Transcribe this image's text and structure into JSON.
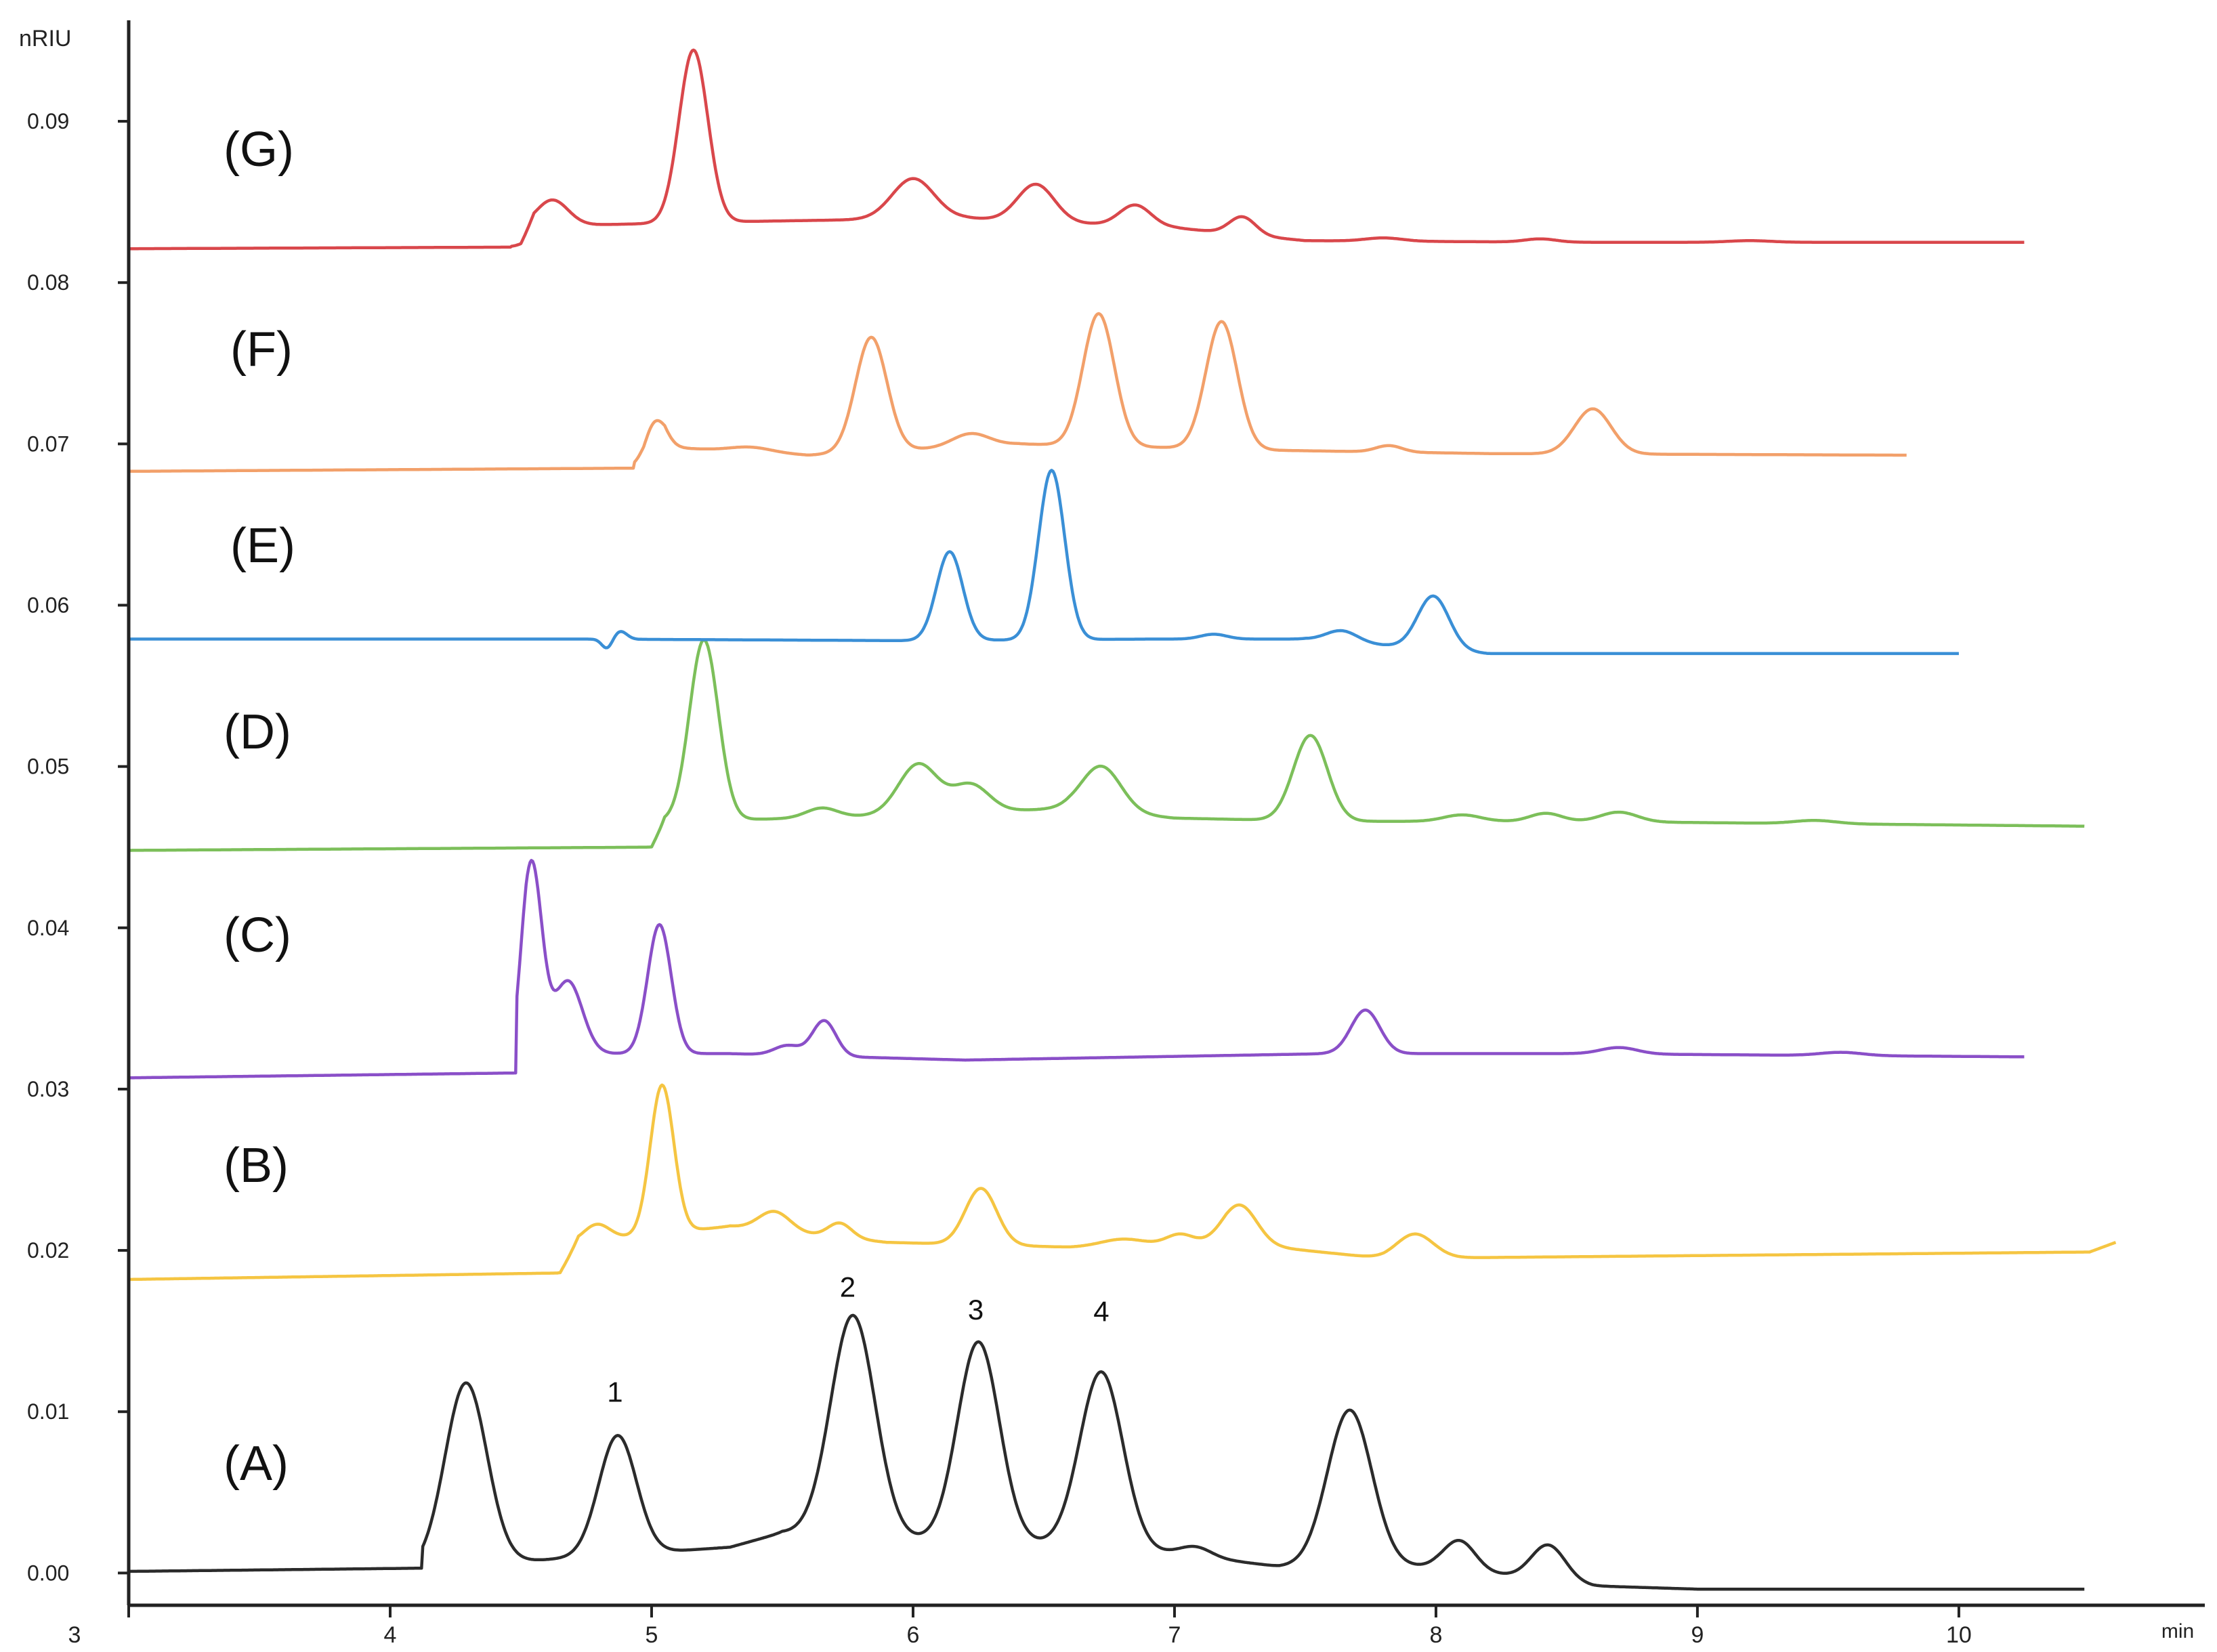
{
  "chart_data": {
    "type": "line",
    "title": "",
    "xlabel": "min",
    "ylabel": "nRIU",
    "x_ticks": [
      "3",
      "4",
      "5",
      "6",
      "7",
      "8",
      "9",
      "10"
    ],
    "y_ticks": [
      "0.00",
      "0.01",
      "0.02",
      "0.03",
      "0.04",
      "0.05",
      "0.06",
      "0.07",
      "0.08",
      "0.09"
    ],
    "xlim": [
      3,
      10.85
    ],
    "ylim": [
      -0.002,
      0.095
    ],
    "grid": false,
    "legend": "none",
    "peak_labels": [
      {
        "text": "1",
        "x": 4.86,
        "y": 0.0102
      },
      {
        "text": "2",
        "x": 5.75,
        "y": 0.0167
      },
      {
        "text": "3",
        "x": 6.24,
        "y": 0.0153
      },
      {
        "text": "4",
        "x": 6.72,
        "y": 0.0152
      }
    ],
    "series": [
      {
        "name": "(A)",
        "color": "#2b2b2b",
        "baseline": [
          [
            3.0,
            0.0001
          ],
          [
            4.12,
            0.0003
          ],
          [
            5.3,
            0.0016
          ],
          [
            5.5,
            0.0025
          ],
          [
            6.1,
            0.002
          ],
          [
            6.55,
            0.0018
          ],
          [
            7.0,
            0.0012
          ],
          [
            7.4,
            0.0004
          ],
          [
            8.0,
            0.0004
          ],
          [
            8.6,
            -0.0008
          ],
          [
            9.0,
            -0.001
          ],
          [
            10.5,
            -0.001
          ]
        ],
        "peaks": [
          {
            "center": 4.29,
            "height": 0.0113,
            "width": 0.08
          },
          {
            "center": 4.87,
            "height": 0.0074,
            "width": 0.072
          },
          {
            "center": 5.77,
            "height": 0.0137,
            "width": 0.085
          },
          {
            "center": 6.25,
            "height": 0.0124,
            "width": 0.08
          },
          {
            "center": 6.72,
            "height": 0.0109,
            "width": 0.082
          },
          {
            "center": 7.08,
            "height": 0.0006,
            "width": 0.06
          },
          {
            "center": 7.67,
            "height": 0.0097,
            "width": 0.085
          },
          {
            "center": 8.09,
            "height": 0.0018,
            "width": 0.06
          },
          {
            "center": 8.43,
            "height": 0.0022,
            "width": 0.065
          }
        ],
        "x_start": 3.0,
        "x_end": 10.48,
        "onset": 4.14
      },
      {
        "name": "(B)",
        "color": "#f5c542",
        "baseline": [
          [
            3.0,
            0.0182
          ],
          [
            4.65,
            0.0186
          ],
          [
            4.72,
            0.0205
          ],
          [
            5.3,
            0.0215
          ],
          [
            5.9,
            0.0205
          ],
          [
            6.6,
            0.0202
          ],
          [
            7.2,
            0.0205
          ],
          [
            7.8,
            0.0195
          ],
          [
            10.5,
            0.0199
          ],
          [
            10.6,
            0.0205
          ]
        ],
        "peaks": [
          {
            "center": 4.79,
            "height": 0.001,
            "width": 0.05
          },
          {
            "center": 5.04,
            "height": 0.0092,
            "width": 0.045
          },
          {
            "center": 5.47,
            "height": 0.0012,
            "width": 0.06
          },
          {
            "center": 5.72,
            "height": 0.0009,
            "width": 0.045
          },
          {
            "center": 6.26,
            "height": 0.0035,
            "width": 0.06
          },
          {
            "center": 6.8,
            "height": 0.0004,
            "width": 0.08
          },
          {
            "center": 7.02,
            "height": 0.0006,
            "width": 0.05
          },
          {
            "center": 7.25,
            "height": 0.0024,
            "width": 0.065
          },
          {
            "center": 7.92,
            "height": 0.0015,
            "width": 0.07
          }
        ],
        "x_start": 3.0,
        "x_end": 10.6,
        "onset": 4.66
      },
      {
        "name": "(C)",
        "color": "#8a4fc8",
        "baseline": [
          [
            3.0,
            0.0307
          ],
          [
            4.48,
            0.031
          ],
          [
            4.52,
            0.0322
          ],
          [
            5.3,
            0.0322
          ],
          [
            6.2,
            0.0318
          ],
          [
            7.6,
            0.0322
          ],
          [
            8.5,
            0.0322
          ],
          [
            10.25,
            0.032
          ]
        ],
        "peaks": [
          {
            "center": 4.54,
            "height": 0.0118,
            "width": 0.04
          },
          {
            "center": 4.68,
            "height": 0.0045,
            "width": 0.055
          },
          {
            "center": 5.03,
            "height": 0.008,
            "width": 0.045
          },
          {
            "center": 5.52,
            "height": 0.0006,
            "width": 0.05
          },
          {
            "center": 5.66,
            "height": 0.0022,
            "width": 0.045
          },
          {
            "center": 7.73,
            "height": 0.0027,
            "width": 0.055
          },
          {
            "center": 8.7,
            "height": 0.0004,
            "width": 0.07
          },
          {
            "center": 9.55,
            "height": 0.0002,
            "width": 0.08
          }
        ],
        "x_start": 3.0,
        "x_end": 10.25,
        "onset": 4.5
      },
      {
        "name": "(D)",
        "color": "#7cbf5a",
        "baseline": [
          [
            3.0,
            0.0448
          ],
          [
            5.0,
            0.045
          ],
          [
            5.05,
            0.0466
          ],
          [
            5.6,
            0.0468
          ],
          [
            6.6,
            0.0474
          ],
          [
            7.0,
            0.0468
          ],
          [
            7.6,
            0.0466
          ],
          [
            8.5,
            0.0466
          ],
          [
            10.48,
            0.0463
          ]
        ],
        "peaks": [
          {
            "center": 5.2,
            "height": 0.0112,
            "width": 0.055
          },
          {
            "center": 5.65,
            "height": 0.0006,
            "width": 0.06
          },
          {
            "center": 6.02,
            "height": 0.0031,
            "width": 0.075
          },
          {
            "center": 6.22,
            "height": 0.0017,
            "width": 0.07
          },
          {
            "center": 6.72,
            "height": 0.0028,
            "width": 0.075
          },
          {
            "center": 7.52,
            "height": 0.0053,
            "width": 0.065
          },
          {
            "center": 8.1,
            "height": 0.0004,
            "width": 0.07
          },
          {
            "center": 8.42,
            "height": 0.0005,
            "width": 0.06
          },
          {
            "center": 8.7,
            "height": 0.0006,
            "width": 0.07
          },
          {
            "center": 9.45,
            "height": 0.0002,
            "width": 0.08
          }
        ],
        "x_start": 3.0,
        "x_end": 10.48,
        "onset": 5.0
      },
      {
        "name": "(E)",
        "color": "#3a8fd6",
        "baseline": [
          [
            3.0,
            0.0579
          ],
          [
            4.75,
            0.0579
          ],
          [
            6.0,
            0.0578
          ],
          [
            6.9,
            0.0579
          ],
          [
            7.5,
            0.0579
          ],
          [
            8.2,
            0.057
          ],
          [
            9.0,
            0.057
          ],
          [
            10.0,
            0.057
          ]
        ],
        "peaks": [
          {
            "center": 4.83,
            "height": -0.0006,
            "width": 0.02
          },
          {
            "center": 4.88,
            "height": 0.0005,
            "width": 0.025
          },
          {
            "center": 6.14,
            "height": 0.0055,
            "width": 0.05
          },
          {
            "center": 6.53,
            "height": 0.0105,
            "width": 0.05
          },
          {
            "center": 7.15,
            "height": 0.0003,
            "width": 0.05
          },
          {
            "center": 7.64,
            "height": 0.0007,
            "width": 0.06
          },
          {
            "center": 7.99,
            "height": 0.0033,
            "width": 0.06
          }
        ],
        "x_start": 3.0,
        "x_end": 10.0,
        "onset": 3.0
      },
      {
        "name": "(F)",
        "color": "#f2a06a",
        "baseline": [
          [
            3.0,
            0.0683
          ],
          [
            4.97,
            0.0685
          ],
          [
            5.05,
            0.0698
          ],
          [
            5.6,
            0.0693
          ],
          [
            6.4,
            0.07
          ],
          [
            7.4,
            0.0696
          ],
          [
            8.2,
            0.0694
          ],
          [
            9.8,
            0.0693
          ]
        ],
        "peaks": [
          {
            "center": 5.01,
            "height": 0.0022,
            "width": 0.04
          },
          {
            "center": 5.38,
            "height": 0.0003,
            "width": 0.08
          },
          {
            "center": 5.84,
            "height": 0.0071,
            "width": 0.06
          },
          {
            "center": 6.22,
            "height": 0.0008,
            "width": 0.07
          },
          {
            "center": 6.71,
            "height": 0.0082,
            "width": 0.06
          },
          {
            "center": 7.18,
            "height": 0.0079,
            "width": 0.06
          },
          {
            "center": 7.82,
            "height": 0.0004,
            "width": 0.05
          },
          {
            "center": 8.6,
            "height": 0.0028,
            "width": 0.07
          }
        ],
        "x_start": 3.0,
        "x_end": 9.8,
        "onset": 4.95
      },
      {
        "name": "(G)",
        "color": "#d9474b",
        "baseline": [
          [
            3.0,
            0.0821
          ],
          [
            4.5,
            0.0822
          ],
          [
            4.55,
            0.0835
          ],
          [
            5.4,
            0.0838
          ],
          [
            6.2,
            0.084
          ],
          [
            7.0,
            0.0834
          ],
          [
            7.5,
            0.0826
          ],
          [
            8.5,
            0.0825
          ],
          [
            10.25,
            0.0825
          ]
        ],
        "peaks": [
          {
            "center": 4.62,
            "height": 0.0016,
            "width": 0.06
          },
          {
            "center": 5.16,
            "height": 0.0107,
            "width": 0.055
          },
          {
            "center": 6.0,
            "height": 0.0025,
            "width": 0.08
          },
          {
            "center": 6.47,
            "height": 0.0023,
            "width": 0.07
          },
          {
            "center": 6.85,
            "height": 0.0013,
            "width": 0.06
          },
          {
            "center": 7.26,
            "height": 0.0011,
            "width": 0.05
          },
          {
            "center": 7.8,
            "height": 0.0002,
            "width": 0.07
          },
          {
            "center": 8.4,
            "height": 0.0002,
            "width": 0.06
          },
          {
            "center": 9.2,
            "height": 0.0001,
            "width": 0.08
          }
        ],
        "x_start": 3.0,
        "x_end": 10.25,
        "onset": 4.48
      }
    ]
  }
}
